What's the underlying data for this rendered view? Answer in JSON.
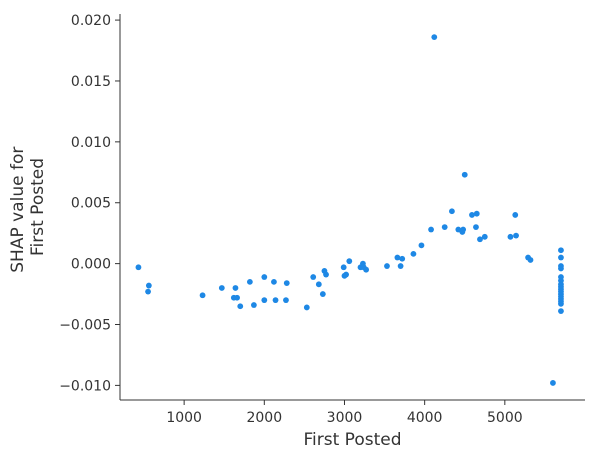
{
  "chart_data": {
    "type": "scatter",
    "title": "",
    "xlabel": "First Posted",
    "ylabel_lines": [
      "SHAP value for",
      "First Posted"
    ],
    "xlim": [
      200,
      6000
    ],
    "ylim": [
      -0.0112,
      0.0205
    ],
    "xticks": [
      {
        "value": 1000,
        "label": "1000"
      },
      {
        "value": 2000,
        "label": "2000"
      },
      {
        "value": 3000,
        "label": "3000"
      },
      {
        "value": 4000,
        "label": "4000"
      },
      {
        "value": 5000,
        "label": "5000"
      }
    ],
    "yticks": [
      {
        "value": 0.02,
        "label": "0.020"
      },
      {
        "value": 0.015,
        "label": "0.015"
      },
      {
        "value": 0.01,
        "label": "0.010"
      },
      {
        "value": 0.005,
        "label": "0.005"
      },
      {
        "value": 0.0,
        "label": "0.000"
      },
      {
        "value": -0.005,
        "label": "−0.005"
      },
      {
        "value": -0.01,
        "label": "−0.010"
      }
    ],
    "grid": false,
    "point_color": "#1e88e5",
    "points": [
      [
        430,
        -0.0003
      ],
      [
        550,
        -0.0023
      ],
      [
        560,
        -0.0018
      ],
      [
        1230,
        -0.0026
      ],
      [
        1470,
        -0.002
      ],
      [
        1620,
        -0.0028
      ],
      [
        1640,
        -0.002
      ],
      [
        1660,
        -0.0028
      ],
      [
        1700,
        -0.0035
      ],
      [
        1820,
        -0.0015
      ],
      [
        1870,
        -0.0034
      ],
      [
        2000,
        -0.0011
      ],
      [
        2000,
        -0.003
      ],
      [
        2120,
        -0.0015
      ],
      [
        2140,
        -0.003
      ],
      [
        2270,
        -0.003
      ],
      [
        2280,
        -0.0016
      ],
      [
        2530,
        -0.0036
      ],
      [
        2610,
        -0.0011
      ],
      [
        2680,
        -0.0017
      ],
      [
        2730,
        -0.0025
      ],
      [
        2750,
        -0.0006
      ],
      [
        2770,
        -0.0009
      ],
      [
        2990,
        -0.0003
      ],
      [
        3000,
        -0.001
      ],
      [
        3020,
        -0.0009
      ],
      [
        3060,
        0.0002
      ],
      [
        3200,
        -0.0003
      ],
      [
        3230,
        0.0
      ],
      [
        3240,
        -0.0003
      ],
      [
        3270,
        -0.0005
      ],
      [
        3530,
        -0.0002
      ],
      [
        3660,
        0.0005
      ],
      [
        3700,
        -0.0002
      ],
      [
        3720,
        0.0004
      ],
      [
        3860,
        0.0008
      ],
      [
        3960,
        0.0015
      ],
      [
        4080,
        0.0028
      ],
      [
        4120,
        0.0186
      ],
      [
        4250,
        0.003
      ],
      [
        4340,
        0.0043
      ],
      [
        4420,
        0.0028
      ],
      [
        4470,
        0.0026
      ],
      [
        4480,
        0.0028
      ],
      [
        4500,
        0.0073
      ],
      [
        4590,
        0.004
      ],
      [
        4640,
        0.003
      ],
      [
        4650,
        0.0041
      ],
      [
        4690,
        0.002
      ],
      [
        4750,
        0.0022
      ],
      [
        5070,
        0.0022
      ],
      [
        5130,
        0.004
      ],
      [
        5140,
        0.0023
      ],
      [
        5290,
        0.0005
      ],
      [
        5320,
        0.0003
      ],
      [
        5600,
        -0.0098
      ],
      [
        5700,
        0.0011
      ],
      [
        5700,
        0.0005
      ],
      [
        5700,
        -0.0002
      ],
      [
        5700,
        -0.0004
      ],
      [
        5700,
        -0.0011
      ],
      [
        5700,
        -0.0014
      ],
      [
        5700,
        -0.0017
      ],
      [
        5700,
        -0.0019
      ],
      [
        5700,
        -0.0021
      ],
      [
        5700,
        -0.0023
      ],
      [
        5700,
        -0.0025
      ],
      [
        5700,
        -0.0027
      ],
      [
        5700,
        -0.0029
      ],
      [
        5700,
        -0.0031
      ],
      [
        5700,
        -0.0033
      ],
      [
        5700,
        -0.0039
      ]
    ]
  }
}
